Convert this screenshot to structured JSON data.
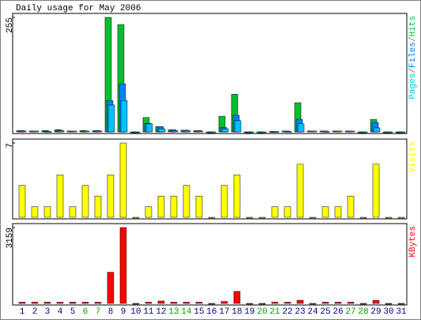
{
  "chart_data": [
    {
      "type": "bar",
      "title": "Daily usage for May 2006",
      "label_separator": "/",
      "ylim": [
        0,
        255
      ],
      "yticks": [
        255
      ],
      "series": [
        {
          "name": "Pages",
          "color": "#00c0ff",
          "values": [
            2,
            2,
            1,
            3,
            2,
            2,
            2,
            60,
            70,
            0,
            18,
            7,
            3,
            3,
            2,
            0,
            7,
            25,
            0,
            0,
            1,
            1,
            18,
            2,
            1,
            2,
            2,
            0,
            9,
            0,
            0
          ]
        },
        {
          "name": "Files",
          "color": "#0080ff",
          "values": [
            3,
            2,
            2,
            4,
            2,
            2,
            3,
            70,
            107,
            0,
            19,
            12,
            5,
            4,
            3,
            0,
            10,
            37,
            0,
            0,
            1,
            2,
            28,
            2,
            2,
            2,
            2,
            0,
            21,
            0,
            0
          ]
        },
        {
          "name": "Hits",
          "color": "#00c030",
          "values": [
            3,
            2,
            3,
            5,
            2,
            3,
            3,
            255,
            239,
            0,
            32,
            12,
            5,
            4,
            3,
            0,
            35,
            84,
            0,
            0,
            1,
            2,
            65,
            2,
            2,
            2,
            2,
            0,
            28,
            0,
            0
          ]
        }
      ]
    },
    {
      "type": "bar",
      "ylim": [
        0,
        7
      ],
      "yticks": [
        7
      ],
      "series": [
        {
          "name": "Visits",
          "color": "#ffff00",
          "values": [
            3,
            1,
            1,
            4,
            1,
            3,
            2,
            4,
            7,
            0,
            1,
            2,
            2,
            3,
            2,
            0,
            3,
            4,
            0,
            0,
            1,
            1,
            5,
            0,
            1,
            1,
            2,
            0,
            5,
            0,
            0
          ]
        }
      ]
    },
    {
      "type": "bar",
      "ylim": [
        0,
        3159
      ],
      "yticks": [
        3159
      ],
      "categories": [
        "1",
        "2",
        "3",
        "4",
        "5",
        "6",
        "7",
        "8",
        "9",
        "10",
        "11",
        "12",
        "13",
        "14",
        "15",
        "16",
        "17",
        "18",
        "19",
        "20",
        "21",
        "22",
        "23",
        "24",
        "25",
        "26",
        "27",
        "28",
        "29",
        "30",
        "31"
      ],
      "category_colors": [
        "#000080",
        "#000080",
        "#000080",
        "#000080",
        "#000080",
        "#00a000",
        "#00a000",
        "#000080",
        "#000080",
        "#000080",
        "#000080",
        "#000080",
        "#00a000",
        "#00a000",
        "#000080",
        "#000080",
        "#000080",
        "#000080",
        "#000080",
        "#00a000",
        "#00a000",
        "#000080",
        "#000080",
        "#000080",
        "#000080",
        "#000080",
        "#00a000",
        "#00a000",
        "#000080",
        "#000080",
        "#000080"
      ],
      "series": [
        {
          "name": "KBytes",
          "color": "#ff0000",
          "values": [
            50,
            50,
            50,
            50,
            50,
            50,
            50,
            1297,
            3159,
            0,
            50,
            100,
            50,
            50,
            50,
            0,
            80,
            499,
            0,
            0,
            50,
            50,
            130,
            0,
            50,
            50,
            50,
            0,
            130,
            0,
            0
          ]
        }
      ]
    }
  ]
}
